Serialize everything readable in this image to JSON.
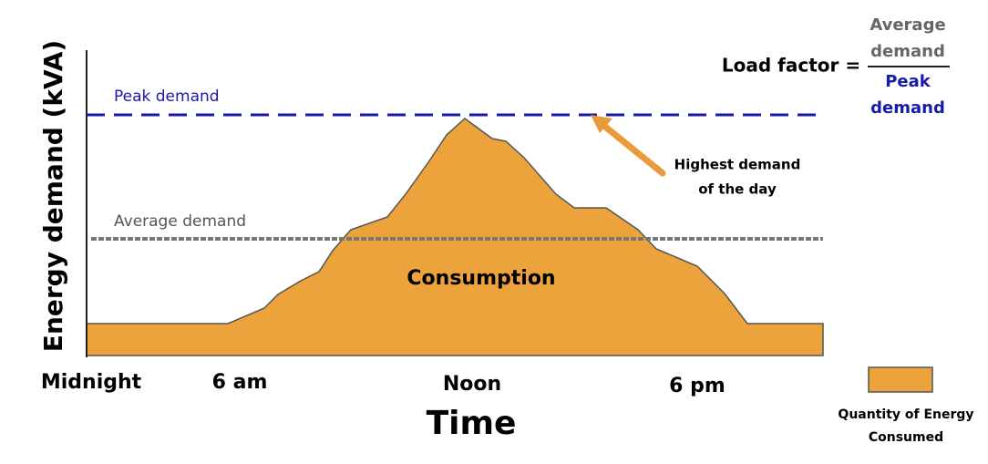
{
  "axes": {
    "y_label": "Energy demand (kVA)",
    "x_label": "Time",
    "x_ticks": [
      "Midnight",
      "6 am",
      "Noon",
      "6 pm"
    ]
  },
  "lines": {
    "peak": "Peak demand",
    "average": "Average demand"
  },
  "area_label": "Consumption",
  "annotation": {
    "lines": [
      "Highest demand",
      "of the day"
    ]
  },
  "formula": {
    "label": "Load factor =",
    "numerator": [
      "Average",
      "demand"
    ],
    "denominator": [
      "Peak",
      "demand"
    ]
  },
  "legend": {
    "lines": [
      "Quantity of Energy",
      "Consumed"
    ]
  }
}
